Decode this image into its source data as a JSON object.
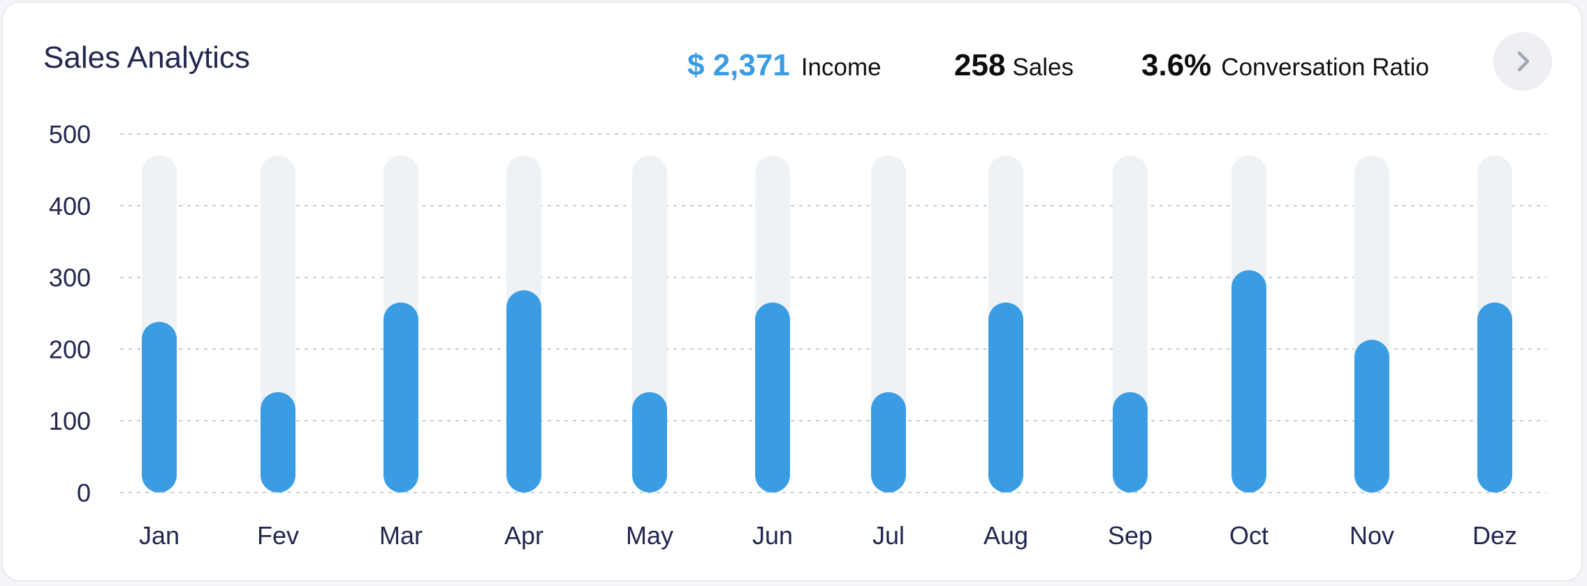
{
  "card": {
    "title": "Sales Analytics"
  },
  "kpis": {
    "income": {
      "value": "$ 2,371",
      "label": "Income"
    },
    "sales": {
      "value": "258",
      "label": "Sales"
    },
    "ratio": {
      "value": "3.6%",
      "label": "Conversation Ratio"
    }
  },
  "icons": {
    "next": "chevron-right-icon"
  },
  "colors": {
    "accent": "#3a9de4",
    "track": "#eff2f5",
    "grid": "#b8c0cc",
    "text": "#23264f"
  },
  "chart_data": {
    "type": "bar",
    "title": "Sales Analytics",
    "xlabel": "",
    "ylabel": "",
    "ylim": [
      0,
      500
    ],
    "yticks": [
      0,
      100,
      200,
      300,
      400,
      500
    ],
    "track_max": 470,
    "grid": true,
    "categories": [
      "Jan",
      "Fev",
      "Mar",
      "Apr",
      "May",
      "Jun",
      "Jul",
      "Aug",
      "Sep",
      "Oct",
      "Nov",
      "Dez"
    ],
    "values": [
      238,
      140,
      265,
      282,
      140,
      265,
      140,
      265,
      140,
      310,
      213,
      265
    ]
  }
}
